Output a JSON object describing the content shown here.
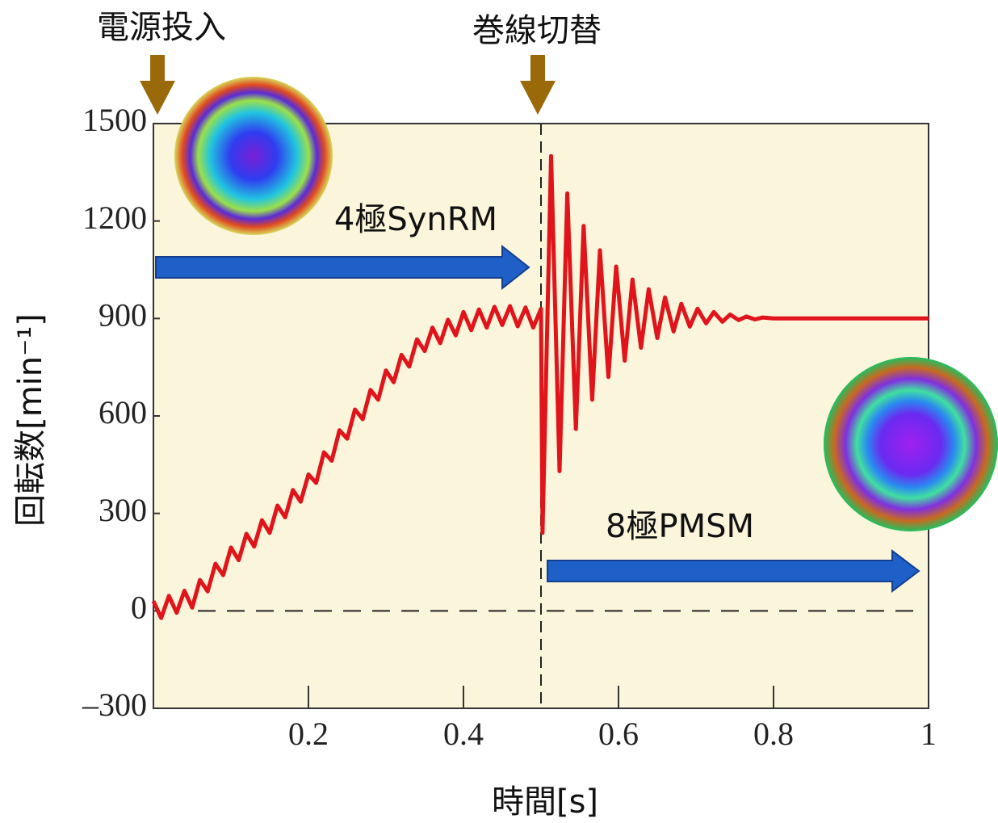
{
  "chart_data": {
    "type": "line",
    "annotations": [
      "電源投入",
      "巻線切替",
      "4極SynRM",
      "8極PMSM"
    ],
    "x_label": "時間[s]",
    "y_label": "回転数[min⁻¹]",
    "x": [
      0,
      0.01,
      0.02,
      0.03,
      0.04,
      0.05,
      0.06,
      0.07,
      0.08,
      0.09,
      0.1,
      0.11,
      0.12,
      0.13,
      0.14,
      0.15,
      0.16,
      0.17,
      0.18,
      0.19,
      0.2,
      0.21,
      0.22,
      0.23,
      0.24,
      0.25,
      0.26,
      0.27,
      0.28,
      0.29,
      0.3,
      0.31,
      0.32,
      0.33,
      0.34,
      0.35,
      0.36,
      0.37,
      0.38,
      0.39,
      0.4,
      0.41,
      0.42,
      0.43,
      0.44,
      0.45,
      0.46,
      0.47,
      0.48,
      0.49,
      0.5,
      0.502,
      0.513,
      0.524,
      0.534,
      0.545,
      0.555,
      0.566,
      0.576,
      0.587,
      0.597,
      0.608,
      0.618,
      0.629,
      0.639,
      0.65,
      0.66,
      0.671,
      0.681,
      0.692,
      0.702,
      0.713,
      0.723,
      0.734,
      0.744,
      0.755,
      0.765,
      0.776,
      0.786,
      0.8,
      1
    ],
    "series": [
      {
        "color": "#e0141a",
        "values": [
          30,
          -22,
          46,
          -6,
          62,
          10,
          95,
          60,
          145,
          110,
          195,
          156,
          237,
          198,
          279,
          240,
          324,
          288,
          372,
          336,
          420,
          394,
          488,
          462,
          556,
          530,
          620,
          590,
          680,
          650,
          740,
          704,
          788,
          752,
          836,
          800,
          872,
          824,
          896,
          848,
          920,
          864,
          928,
          872,
          936,
          880,
          938,
          876,
          934,
          872,
          930,
          240,
          1400,
          430,
          1285,
          560,
          1185,
          650,
          1110,
          720,
          1060,
          770,
          1020,
          810,
          990,
          840,
          965,
          860,
          945,
          875,
          930,
          885,
          920,
          890,
          912,
          895,
          906,
          897,
          903,
          900,
          900
        ]
      }
    ],
    "xlim": [
      0,
      1
    ],
    "xticks": [
      0.2,
      0.4,
      0.6,
      0.8,
      1
    ],
    "ylim": [
      -300,
      1500
    ],
    "yticks": [
      {
        "value": -300,
        "label": "–300"
      },
      0,
      300,
      600,
      900,
      1200,
      1500
    ],
    "vline": 0.5,
    "hline": 0,
    "background": "#fbf5db"
  }
}
